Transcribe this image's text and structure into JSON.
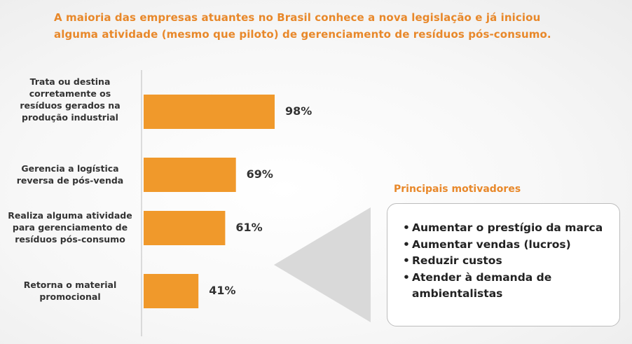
{
  "headline": "A maioria das empresas atuantes no Brasil conhece a nova legislação e já iniciou alguma atividade (mesmo que piloto) de gerenciamento de resíduos pós-consumo.",
  "colors": {
    "accent": "#e8882a",
    "bar": "#f0992b",
    "text": "#333333",
    "callout": "#d9d9d9"
  },
  "chart_data": {
    "type": "bar",
    "orientation": "horizontal",
    "categories": [
      "Trata ou destina corretamente os resíduos gerados na produção industrial",
      "Gerencia a logística reversa de pós-venda",
      "Realiza alguma atividade para gerenciamento de resíduos pós-consumo",
      "Retorna o material promocional"
    ],
    "values": [
      98,
      69,
      61,
      41
    ],
    "value_labels": [
      "98%",
      "69%",
      "61%",
      "41%"
    ],
    "xlim": [
      0,
      100
    ]
  },
  "motivators": {
    "title": "Principais motivadores",
    "items": [
      "Aumentar o prestígio da marca",
      "Aumentar vendas (lucros)",
      "Reduzir custos",
      "Atender à demanda de ambientalistas"
    ]
  }
}
